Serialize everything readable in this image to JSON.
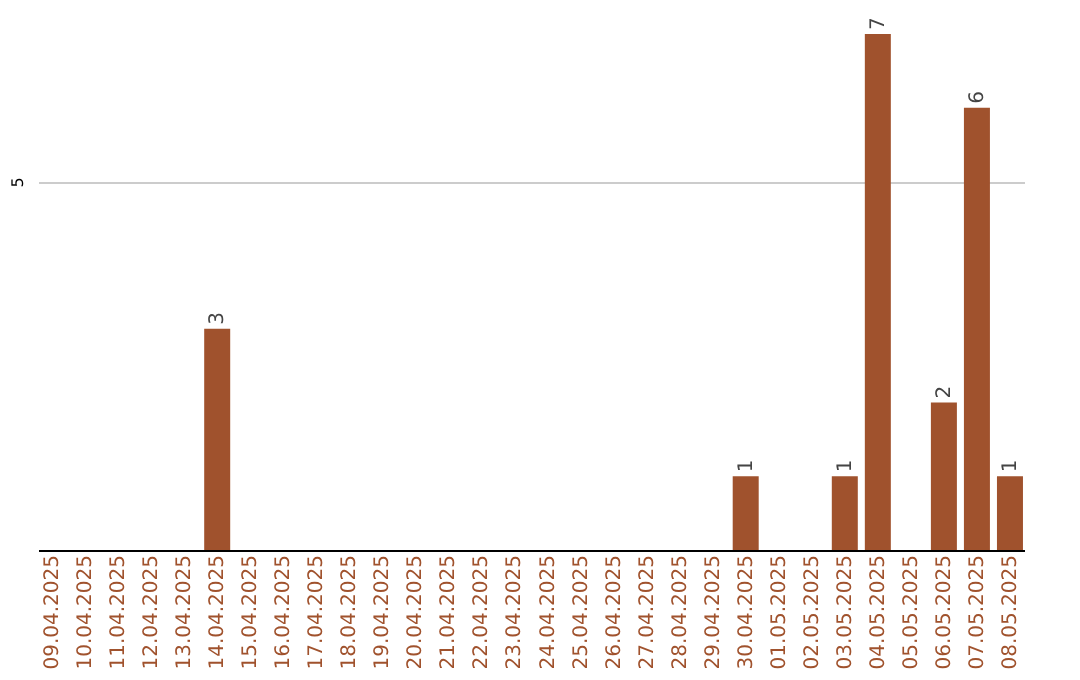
{
  "chart_data": {
    "type": "bar",
    "categories": [
      "09.04.2025",
      "10.04.2025",
      "11.04.2025",
      "12.04.2025",
      "13.04.2025",
      "14.04.2025",
      "15.04.2025",
      "16.04.2025",
      "17.04.2025",
      "18.04.2025",
      "19.04.2025",
      "20.04.2025",
      "21.04.2025",
      "22.04.2025",
      "23.04.2025",
      "24.04.2025",
      "25.04.2025",
      "26.04.2025",
      "27.04.2025",
      "28.04.2025",
      "29.04.2025",
      "30.04.2025",
      "01.05.2025",
      "02.05.2025",
      "03.05.2025",
      "04.05.2025",
      "05.05.2025",
      "06.05.2025",
      "07.05.2025",
      "08.05.2025"
    ],
    "values": [
      0,
      0,
      0,
      0,
      0,
      3,
      0,
      0,
      0,
      0,
      0,
      0,
      0,
      0,
      0,
      0,
      0,
      0,
      0,
      0,
      0,
      1,
      0,
      0,
      1,
      7,
      0,
      2,
      6,
      1
    ],
    "value_labels": [
      null,
      null,
      null,
      null,
      null,
      "3",
      null,
      null,
      null,
      null,
      null,
      null,
      null,
      null,
      null,
      null,
      null,
      null,
      null,
      null,
      null,
      "1",
      null,
      null,
      "1",
      "7",
      null,
      "2",
      "6",
      "1"
    ],
    "color": "#a0522d",
    "ylim": [
      0,
      7
    ],
    "yticks": [
      5
    ],
    "grid": "y"
  }
}
